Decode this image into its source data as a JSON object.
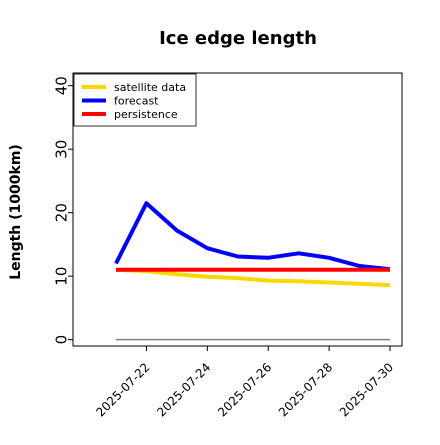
{
  "chart_data": {
    "type": "line",
    "title": "Ice edge length",
    "xlabel": "",
    "ylabel": "Length (1000km)",
    "ylim": [
      -1,
      42
    ],
    "y_ticks": [
      0,
      10,
      20,
      30,
      40
    ],
    "x_ticks": [
      "2025-07-22",
      "2025-07-24",
      "2025-07-26",
      "2025-07-28",
      "2025-07-30"
    ],
    "x_tick_colors": [
      "#228b22",
      "#000000",
      "#000000",
      "#000000",
      "#000000"
    ],
    "x_dates": [
      "2025-07-21",
      "2025-07-22",
      "2025-07-23",
      "2025-07-24",
      "2025-07-25",
      "2025-07-26",
      "2025-07-27",
      "2025-07-28",
      "2025-07-29",
      "2025-07-30"
    ],
    "legend_position": "top-left",
    "grid": false,
    "series": [
      {
        "name": "satellite data",
        "color": "#ffd700",
        "values": [
          11.0,
          10.8,
          10.3,
          9.9,
          9.7,
          9.3,
          9.2,
          9.0,
          8.8,
          8.6
        ]
      },
      {
        "name": "forecast",
        "color": "#0000ff",
        "values": [
          12.0,
          21.5,
          17.2,
          14.4,
          13.1,
          12.9,
          13.6,
          12.9,
          11.6,
          11.1
        ]
      },
      {
        "name": "persistence",
        "color": "#ff0000",
        "values": [
          11.0,
          11.0,
          11.0,
          11.0,
          11.0,
          11.0,
          11.0,
          11.0,
          11.0,
          11.0
        ]
      }
    ],
    "reference_line": {
      "color": "#808080",
      "value": 0
    }
  }
}
